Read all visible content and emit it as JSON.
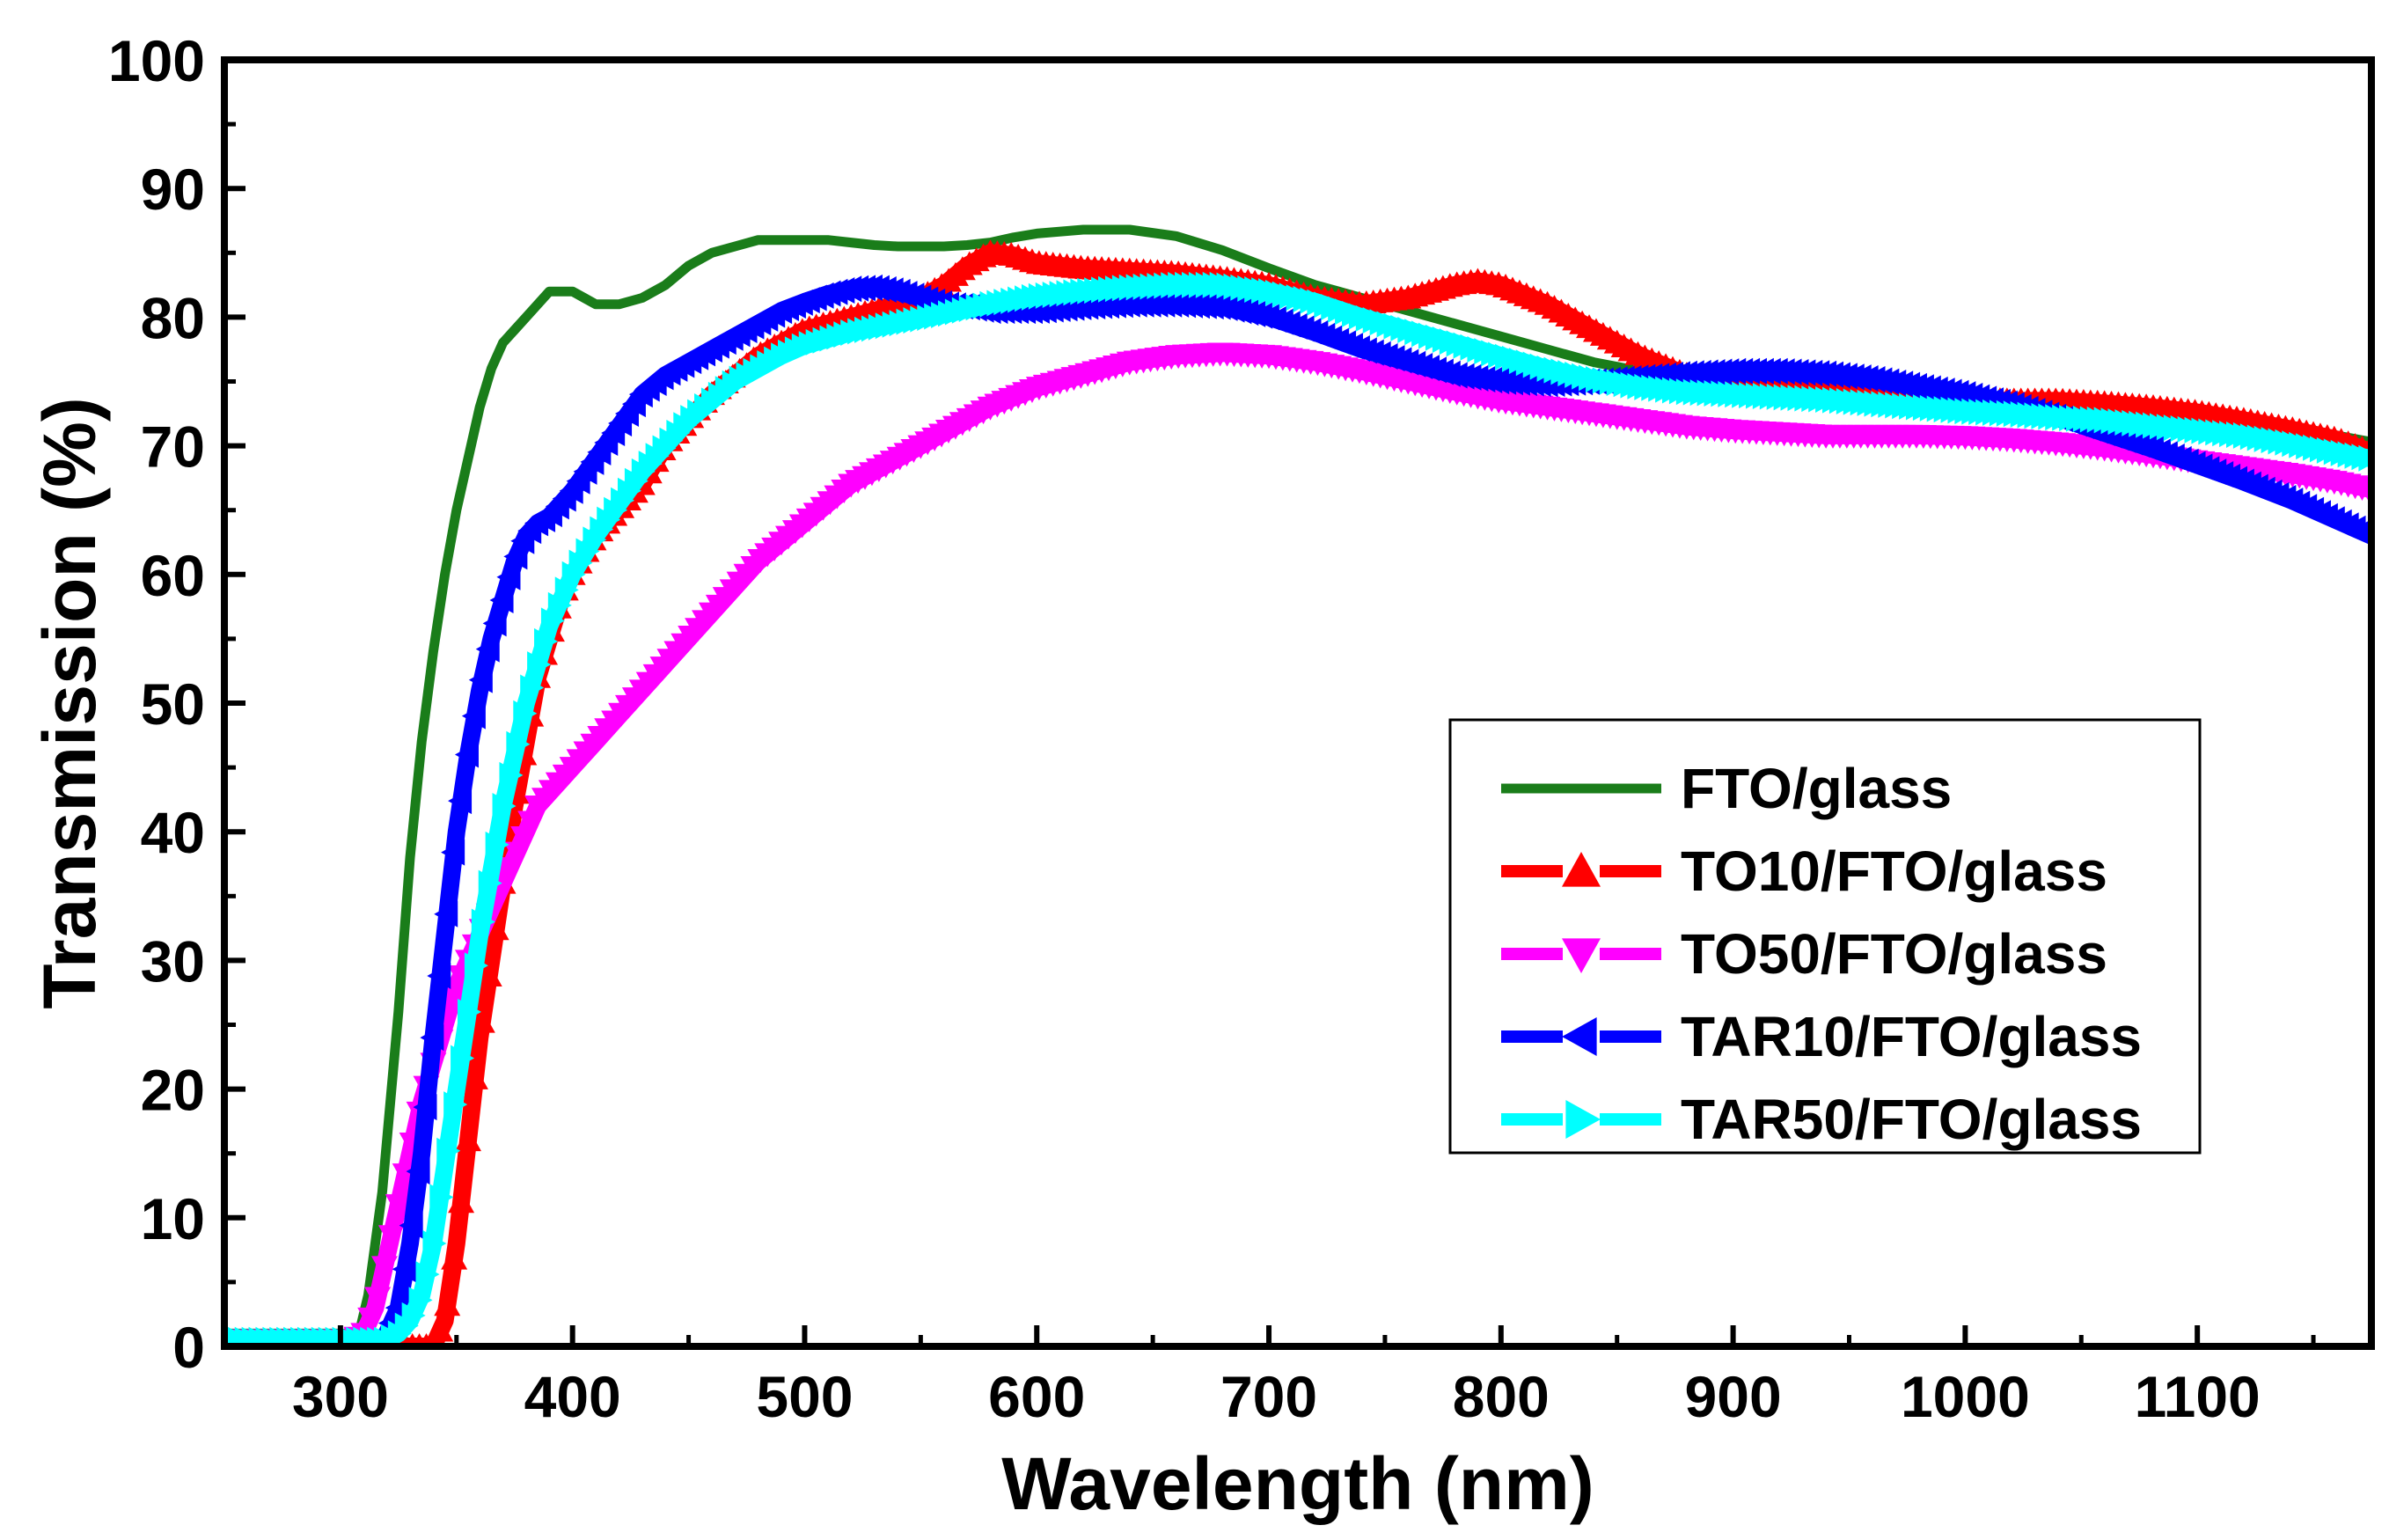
{
  "chart_data": {
    "type": "line",
    "title": "",
    "xlabel": "Wavelength (nm)",
    "ylabel": "Transmission (%)",
    "xlim": [
      250,
      1175
    ],
    "ylim": [
      0,
      100
    ],
    "xticks": [
      300,
      400,
      500,
      600,
      700,
      800,
      900,
      1000,
      1100
    ],
    "xtick_labels": [
      "300",
      "400",
      "500",
      "600",
      "700",
      "800",
      "900",
      "1000",
      "1100"
    ],
    "yticks": [
      0,
      10,
      20,
      30,
      40,
      50,
      60,
      70,
      80,
      90,
      100
    ],
    "ytick_labels": [
      "0",
      "10",
      "20",
      "30",
      "40",
      "50",
      "60",
      "70",
      "80",
      "90",
      "100"
    ],
    "grid": false,
    "legend_position": "center-right",
    "series": [
      {
        "name": "FTO/glass",
        "color": "#1a7d1a",
        "marker": "none",
        "x": [
          250,
          300,
          308,
          312,
          318,
          325,
          330,
          335,
          340,
          345,
          350,
          355,
          360,
          365,
          370,
          375,
          380,
          385,
          390,
          395,
          400,
          405,
          410,
          420,
          430,
          440,
          450,
          460,
          470,
          480,
          490,
          500,
          510,
          520,
          530,
          540,
          550,
          560,
          570,
          580,
          590,
          600,
          620,
          640,
          660,
          680,
          700,
          720,
          740,
          760,
          780,
          800,
          820,
          840,
          860,
          880,
          900,
          920,
          940,
          960,
          980,
          1000,
          1020,
          1040,
          1060,
          1080,
          1100,
          1120,
          1140,
          1160,
          1175
        ],
        "y": [
          1,
          1,
          1,
          4,
          12,
          26,
          38,
          47,
          54,
          60,
          65,
          69,
          73,
          76,
          78,
          79,
          80,
          81,
          82,
          82,
          82,
          81.5,
          81,
          81,
          81.5,
          82.5,
          84,
          85,
          85.5,
          86,
          86,
          86,
          86,
          85.8,
          85.6,
          85.5,
          85.5,
          85.5,
          85.6,
          85.8,
          86.2,
          86.5,
          86.8,
          86.8,
          86.3,
          85.2,
          83.8,
          82.5,
          81.5,
          80.5,
          79.5,
          78.5,
          77.5,
          76.5,
          75.8,
          75.2,
          74.8,
          74.5,
          74.2,
          74,
          73.8,
          73.5,
          73.2,
          73,
          72.8,
          72.5,
          72.2,
          71.8,
          71.3,
          70.8,
          70.3
        ]
      },
      {
        "name": "TO10/FTO/glass",
        "color": "#ff0000",
        "marker": "triangle-up",
        "x": [
          250,
          330,
          340,
          345,
          350,
          355,
          360,
          365,
          370,
          375,
          380,
          385,
          390,
          395,
          400,
          410,
          420,
          430,
          440,
          450,
          460,
          470,
          480,
          490,
          500,
          510,
          520,
          530,
          540,
          550,
          560,
          570,
          580,
          590,
          600,
          620,
          640,
          660,
          680,
          700,
          720,
          740,
          760,
          780,
          790,
          800,
          820,
          840,
          860,
          880,
          900,
          920,
          940,
          960,
          980,
          1000,
          1020,
          1040,
          1060,
          1080,
          1100,
          1120,
          1140,
          1160,
          1175
        ],
        "y": [
          0,
          0,
          0,
          2,
          8,
          16,
          24,
          30,
          36,
          42,
          47,
          52,
          55,
          58,
          60,
          63,
          65,
          67,
          70,
          72,
          74,
          75.5,
          77,
          78,
          79,
          79.5,
          80,
          80.5,
          81,
          81.5,
          82.5,
          84,
          85,
          84.8,
          84.2,
          83.8,
          83.6,
          83.4,
          83,
          82.5,
          81.5,
          81,
          81.5,
          82.5,
          82.8,
          82.5,
          81,
          79,
          77,
          75.5,
          74.8,
          74.5,
          74.2,
          74,
          73.8,
          73.6,
          73.5,
          73.5,
          73.3,
          73,
          72.6,
          72,
          71.3,
          70.5,
          69.5
        ]
      },
      {
        "name": "TO50/FTO/glass",
        "color": "#ff00ff",
        "marker": "triangle-down",
        "x": [
          250,
          305,
          310,
          315,
          320,
          325,
          330,
          335,
          340,
          345,
          350,
          355,
          360,
          365,
          370,
          375,
          380,
          385,
          390,
          400,
          410,
          420,
          440,
          460,
          480,
          500,
          520,
          540,
          560,
          580,
          600,
          620,
          640,
          660,
          680,
          700,
          720,
          740,
          760,
          780,
          800,
          820,
          840,
          860,
          880,
          900,
          920,
          940,
          960,
          980,
          1000,
          1020,
          1040,
          1060,
          1080,
          1100,
          1120,
          1140,
          1160,
          1175
        ],
        "y": [
          0.5,
          0.5,
          1,
          3,
          7,
          11,
          15,
          19,
          22,
          25,
          28,
          30,
          32,
          34,
          36,
          38,
          40,
          42,
          43,
          45,
          47,
          49,
          53,
          57,
          61,
          64,
          67,
          69,
          71,
          73,
          74.5,
          75.5,
          76.5,
          77,
          77.2,
          77,
          76.5,
          75.8,
          75,
          74.2,
          73.5,
          73,
          72.5,
          72,
          71.5,
          71.2,
          71,
          70.8,
          70.8,
          70.8,
          70.7,
          70.5,
          70.2,
          69.8,
          69.3,
          68.8,
          68.3,
          67.8,
          67.2,
          66.6
        ]
      },
      {
        "name": "TAR10/FTO/glass",
        "color": "#0000ff",
        "marker": "triangle-left",
        "x": [
          250,
          315,
          320,
          325,
          330,
          335,
          340,
          345,
          350,
          355,
          360,
          365,
          370,
          375,
          380,
          385,
          390,
          395,
          400,
          410,
          420,
          430,
          440,
          450,
          460,
          470,
          480,
          490,
          500,
          510,
          520,
          530,
          540,
          550,
          560,
          570,
          580,
          590,
          600,
          620,
          640,
          660,
          680,
          700,
          720,
          740,
          760,
          780,
          800,
          820,
          840,
          860,
          880,
          900,
          920,
          940,
          960,
          980,
          1000,
          1020,
          1040,
          1060,
          1080,
          1100,
          1120,
          1140,
          1160,
          1175
        ],
        "y": [
          0,
          0,
          1,
          3,
          8,
          15,
          24,
          32,
          40,
          46,
          51,
          55,
          58,
          61,
          63,
          64,
          64.5,
          65.5,
          66.5,
          69,
          71.5,
          74,
          75.5,
          76.5,
          77.5,
          78.5,
          79.5,
          80.5,
          81.2,
          81.8,
          82.2,
          82.3,
          82,
          81.5,
          81,
          80.8,
          80.5,
          80.5,
          80.5,
          80.8,
          81,
          81,
          80.8,
          80,
          78.8,
          77.5,
          76.5,
          75.5,
          75,
          74.8,
          75,
          75.3,
          75.6,
          75.8,
          75.8,
          75.6,
          75.2,
          74.6,
          74,
          73.2,
          72.2,
          71,
          69.8,
          68.5,
          67.2,
          65.8,
          64.2,
          63
        ]
      },
      {
        "name": "TAR50/FTO/glass",
        "color": "#00ffff",
        "marker": "triangle-right",
        "x": [
          250,
          320,
          325,
          330,
          335,
          340,
          345,
          350,
          355,
          360,
          365,
          370,
          375,
          380,
          385,
          390,
          395,
          400,
          410,
          420,
          430,
          440,
          450,
          460,
          470,
          480,
          490,
          500,
          520,
          540,
          560,
          580,
          600,
          620,
          640,
          660,
          680,
          700,
          720,
          740,
          760,
          780,
          800,
          820,
          840,
          860,
          880,
          900,
          920,
          940,
          960,
          980,
          1000,
          1020,
          1040,
          1060,
          1080,
          1100,
          1120,
          1140,
          1160,
          1175
        ],
        "y": [
          0.5,
          0.5,
          1,
          2,
          4,
          8,
          14,
          20,
          26,
          32,
          37,
          42,
          46,
          50,
          53,
          56,
          58,
          60,
          63,
          65.5,
          68,
          70,
          72,
          73.5,
          75,
          76,
          77,
          77.8,
          78.8,
          79.5,
          80.2,
          81,
          81.6,
          82,
          82.3,
          82.5,
          82.5,
          82,
          81.2,
          80,
          79,
          78,
          77,
          76,
          75.2,
          74.6,
          74.2,
          74,
          73.8,
          73.6,
          73.3,
          73,
          72.7,
          72.5,
          72.2,
          72,
          71.6,
          71.2,
          70.8,
          70.2,
          69.5,
          69
        ]
      }
    ]
  }
}
